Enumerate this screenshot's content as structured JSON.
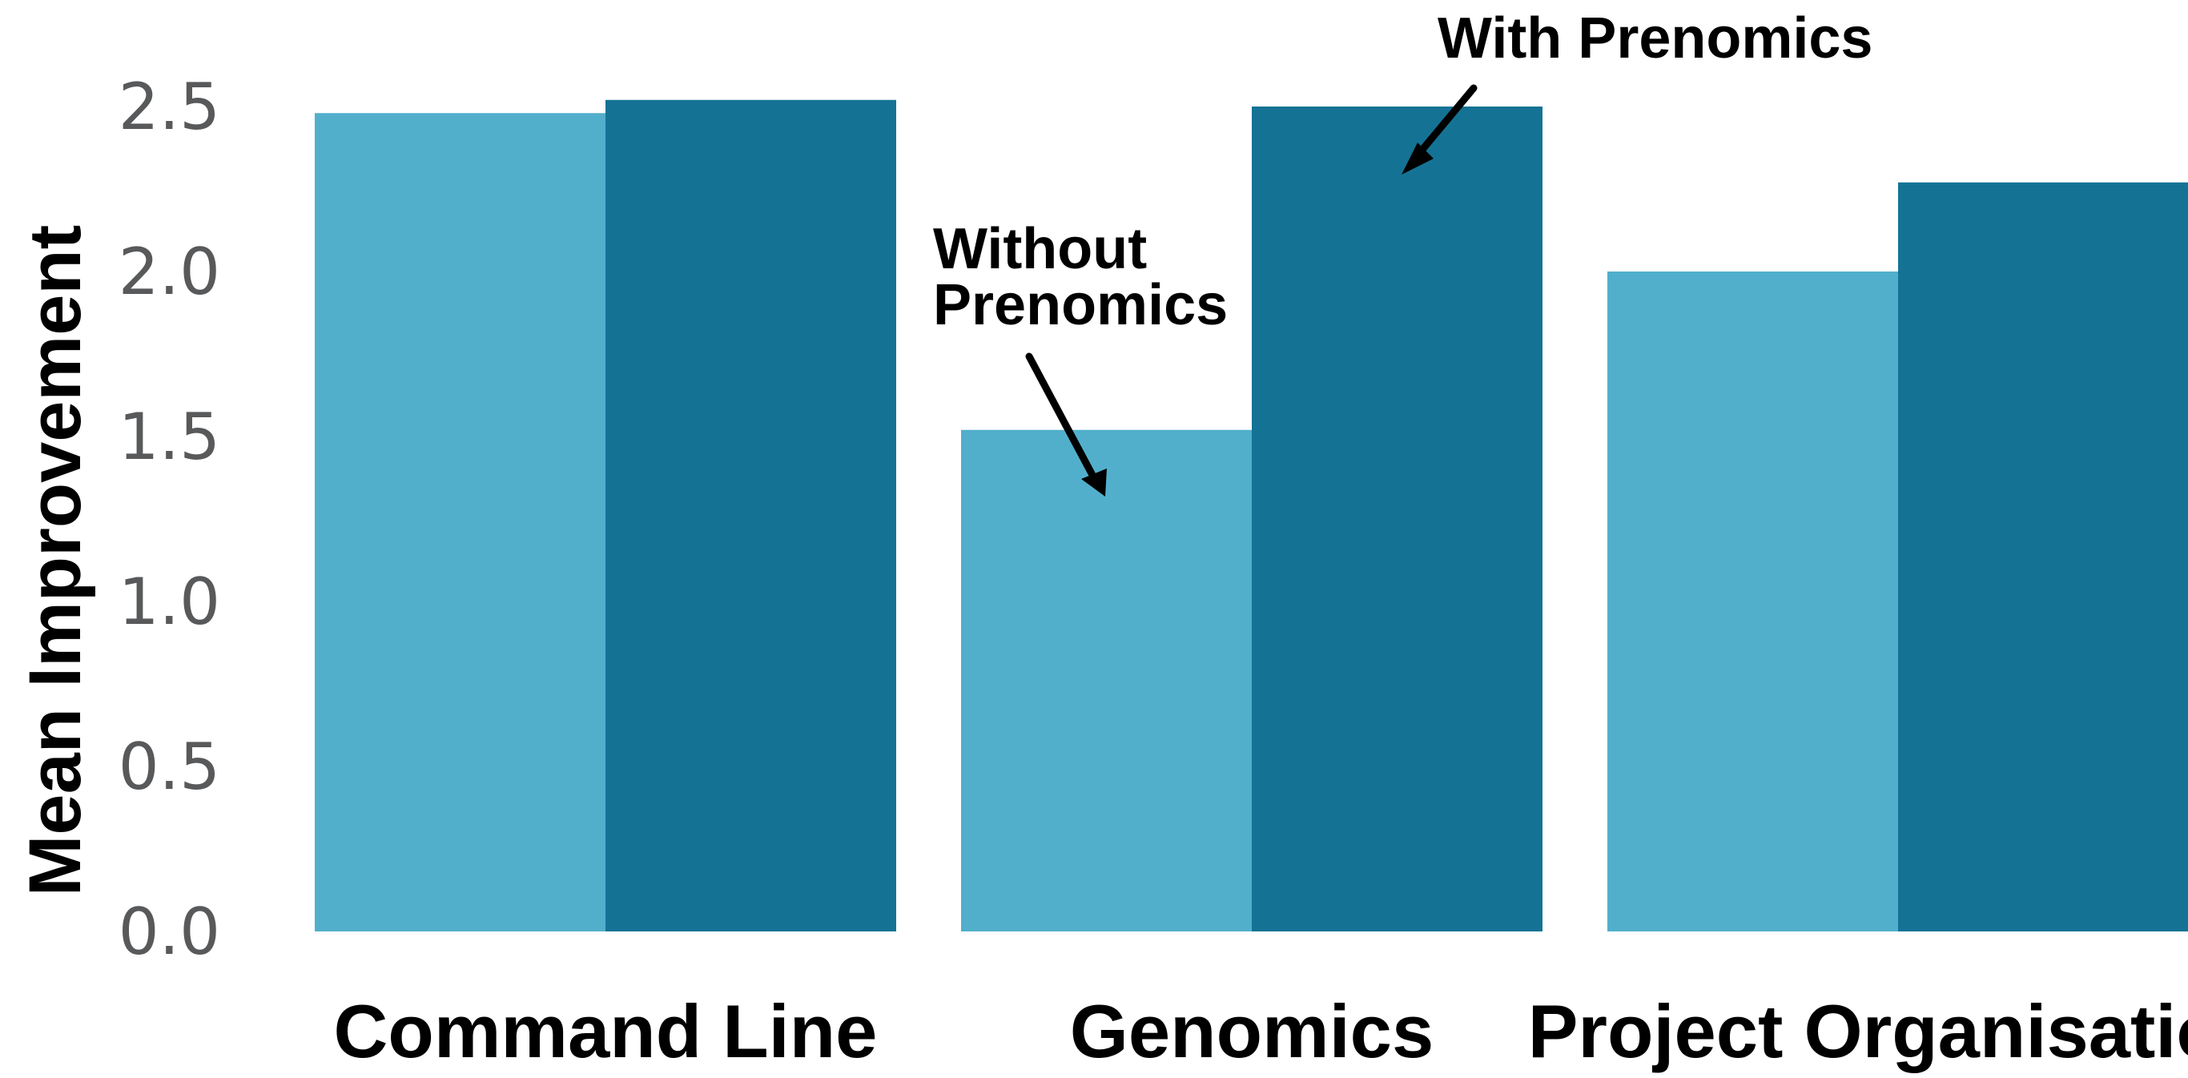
{
  "chart_data": {
    "type": "bar",
    "categories": [
      "Command Line",
      "Genomics",
      "Project Organisation"
    ],
    "series": [
      {
        "name": "Without Prenomics",
        "values": [
          2.48,
          1.52,
          2.0
        ],
        "color": "#52afcc"
      },
      {
        "name": "With Prenomics",
        "values": [
          2.52,
          2.5,
          2.27
        ],
        "color": "#147395"
      }
    ],
    "ylabel": "Mean Improvement",
    "ylim": [
      0,
      2.5
    ],
    "yticks": [
      "0.0",
      "0.5",
      "1.0",
      "1.5",
      "2.0",
      "2.5"
    ],
    "grid": false,
    "legend": "none",
    "annotations": {
      "with_label": "With Prenomics",
      "without_label_line1": "Without",
      "without_label_line2": "Prenomics"
    }
  }
}
